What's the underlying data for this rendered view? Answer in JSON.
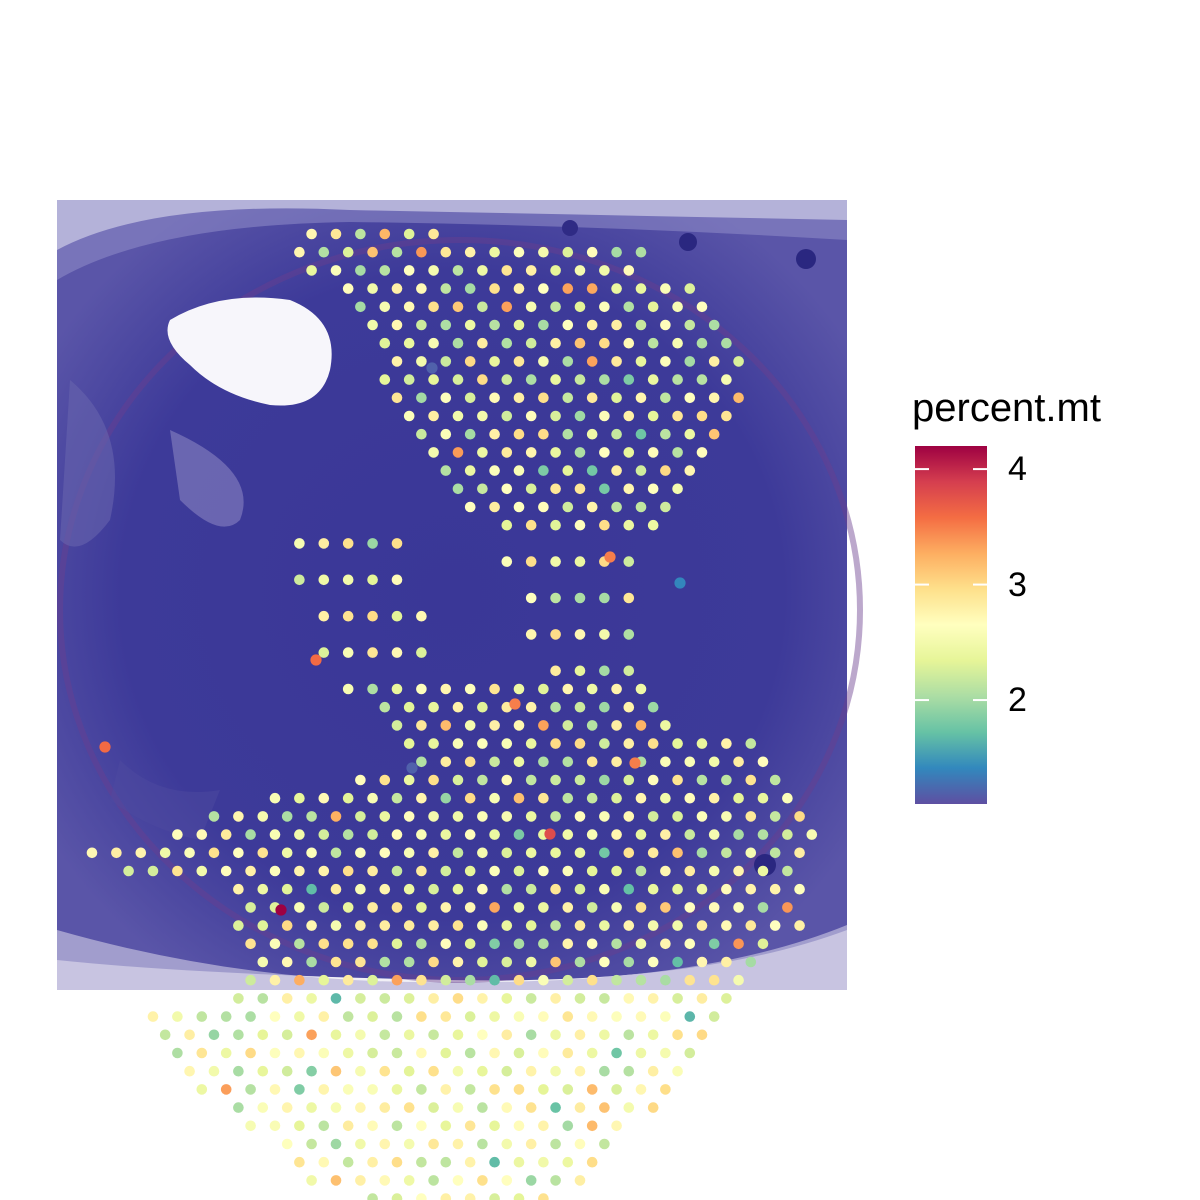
{
  "chart_data": {
    "type": "scatter",
    "title": "",
    "xlabel": "",
    "ylabel": "",
    "background": "H&E tissue section image (purple/blue stained tissue)",
    "legend": {
      "title": "percent.mt",
      "position": "right",
      "type": "continuous colorbar",
      "ticks": [
        2,
        3,
        4
      ],
      "range": [
        1.1,
        4.2
      ]
    },
    "colormap": [
      "#5E4FA2",
      "#3288BD",
      "#66C2A5",
      "#ABDDA4",
      "#E6F598",
      "#FFFFBF",
      "#FEE08B",
      "#FDAE61",
      "#F46D43",
      "#D53E4F",
      "#9E0142"
    ],
    "spot_value_summary": {
      "typical": "2 to 3",
      "highlighted_high": [
        4.2,
        3.8,
        3.6,
        3.5
      ],
      "highlighted_low": [
        1.2,
        1.4
      ]
    }
  }
}
